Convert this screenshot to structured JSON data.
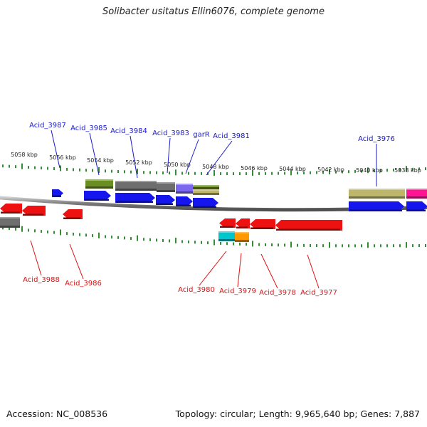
{
  "title": "Solibacter usitatus Ellin6076, complete genome",
  "footer": {
    "accession": "Accession: NC_008536",
    "summary": "Topology: circular; Length: 9,965,640 bp; Genes: 7,887"
  },
  "colors": {
    "tick": "#1e7f1e",
    "upper_label": "#1a1acc",
    "lower_label": "#dd1111",
    "backbone": "#8a8a8a",
    "blue": "#1515ee",
    "red": "#ee1111",
    "gray": "#6e6e6e",
    "olive": "#6b8e23",
    "khaki": "#bdb76b",
    "slate": "#7b68ee",
    "cyan": "#00c5cc",
    "orange": "#ff9900",
    "magenta": "#ff1493"
  },
  "scale_labels": [
    "5058 kbp",
    "5056 kbp",
    "5054 kbp",
    "5052 kbp",
    "5050 kbp",
    "5048 kbp",
    "5046 kbp",
    "5044 kbp",
    "5042 kbp",
    "5040 kbp",
    "5038 kbp"
  ],
  "upper_labels": [
    "Acid_3987",
    "Acid_3985",
    "Acid_3984",
    "Acid_3983",
    "garR",
    "Acid_3981",
    "Acid_3976"
  ],
  "lower_labels": [
    "Acid_3988",
    "Acid_3986",
    "Acid_3980",
    "Acid_3979",
    "Acid_3978",
    "Acid_3977"
  ]
}
